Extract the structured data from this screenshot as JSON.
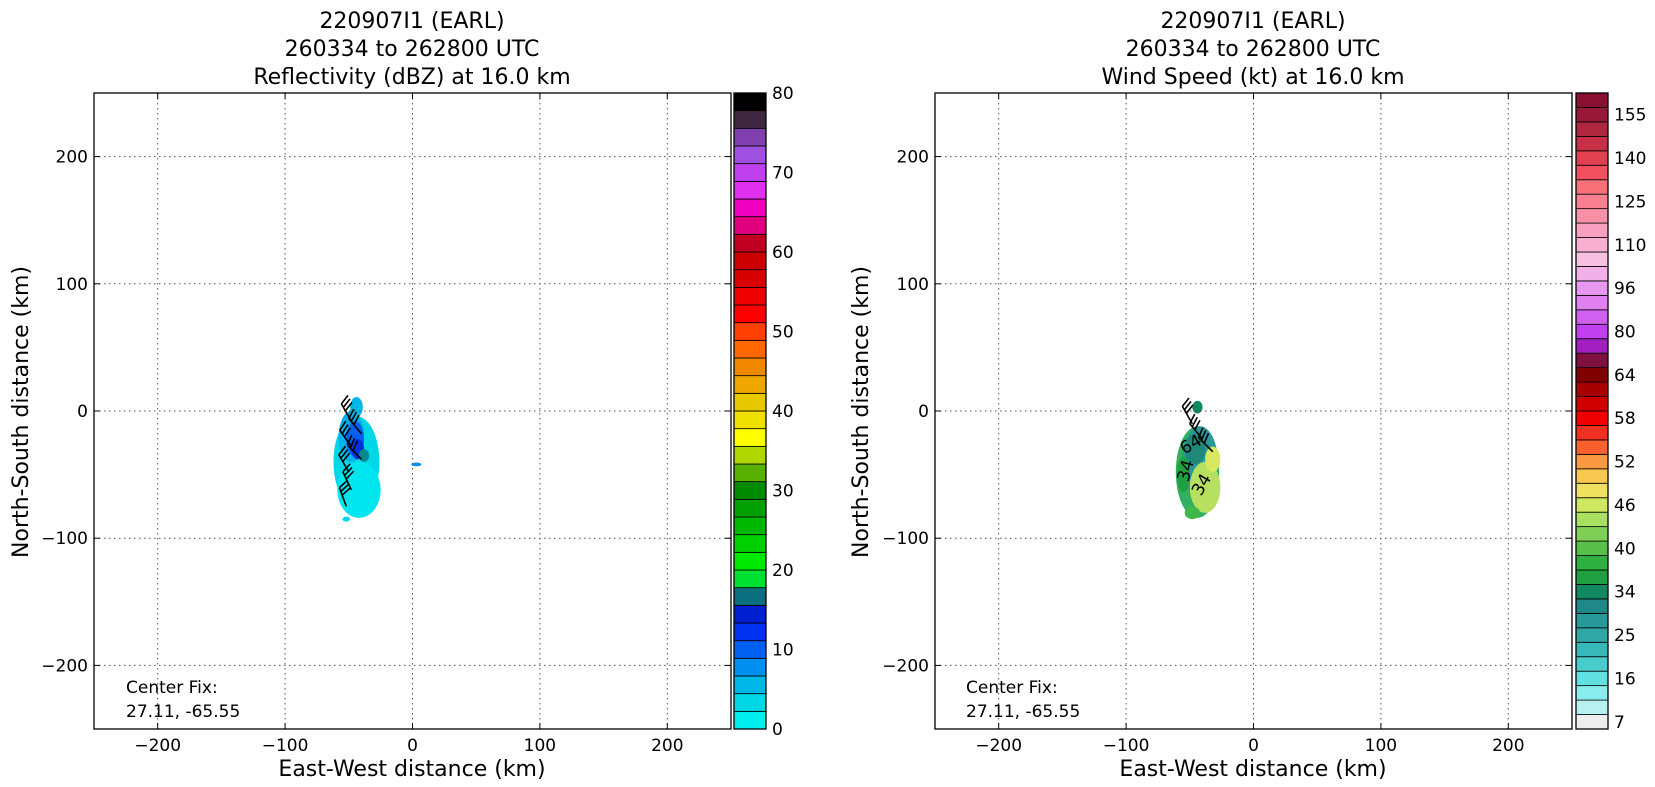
{
  "chart_data": [
    {
      "type": "heatmap",
      "title_lines": [
        "220907I1 (EARL)",
        "260334 to 262800 UTC",
        "Reflectivity (dBZ) at 16.0 km"
      ],
      "xlabel": "East-West distance (km)",
      "ylabel": "North-South distance (km)",
      "xlim": [
        -250,
        250
      ],
      "ylim": [
        -250,
        250
      ],
      "xticks": [
        -200,
        -100,
        0,
        100,
        200
      ],
      "yticks": [
        -200,
        -100,
        0,
        100,
        200
      ],
      "xtick_labels": [
        "−200",
        "−100",
        "0",
        "100",
        "200"
      ],
      "ytick_labels": [
        "−200",
        "−100",
        "0",
        "100",
        "200"
      ],
      "grid": true,
      "annotation": [
        "Center Fix:",
        "27.11, -65.55"
      ],
      "colorbar": {
        "min": 0,
        "max": 80,
        "ticks": [
          0,
          10,
          20,
          30,
          40,
          50,
          60,
          70,
          80
        ],
        "colors": [
          "#00f0f0",
          "#00d8e8",
          "#00b8e8",
          "#0090f0",
          "#0060f0",
          "#0030f0",
          "#0020d0",
          "#0a7080",
          "#00e030",
          "#00e800",
          "#00d000",
          "#00b800",
          "#00a000",
          "#008a00",
          "#58b000",
          "#b0d800",
          "#ffff00",
          "#f0e000",
          "#e8c800",
          "#f0a800",
          "#f08800",
          "#ff6800",
          "#ff4000",
          "#ff0000",
          "#ee0000",
          "#d80000",
          "#cc0000",
          "#c00020",
          "#e00080",
          "#f000c0",
          "#e030f0",
          "#c040f0",
          "#a050e0",
          "#8040b0",
          "#402840",
          "#000000"
        ]
      },
      "blobs": [
        {
          "x": -44,
          "y": -40,
          "rx": 18,
          "ry": 36,
          "color": "#00d8e8"
        },
        {
          "x": -42,
          "y": -62,
          "rx": 17,
          "ry": 22,
          "color": "#00e6ee"
        },
        {
          "x": -48,
          "y": -20,
          "rx": 10,
          "ry": 20,
          "color": "#00b0ec"
        },
        {
          "x": -45,
          "y": -22,
          "rx": 7,
          "ry": 14,
          "color": "#0060f0"
        },
        {
          "x": -43,
          "y": -30,
          "rx": 5,
          "ry": 8,
          "color": "#0030e0"
        },
        {
          "x": -38,
          "y": -35,
          "rx": 4,
          "ry": 5,
          "color": "#0a8a90"
        },
        {
          "x": -44,
          "y": 3,
          "rx": 5,
          "ry": 8,
          "color": "#00b8e8"
        },
        {
          "x": 3,
          "y": -42,
          "rx": 4,
          "ry": 1.5,
          "color": "#0090f0"
        },
        {
          "x": -52,
          "y": -85,
          "rx": 3,
          "ry": 2,
          "color": "#00d8e8"
        }
      ],
      "barbs": [
        {
          "x": -48,
          "y": -8,
          "dir": -30
        },
        {
          "x": -40,
          "y": -18,
          "dir": -40
        },
        {
          "x": -48,
          "y": -28,
          "dir": -35
        },
        {
          "x": -40,
          "y": -38,
          "dir": -45
        },
        {
          "x": -50,
          "y": -48,
          "dir": -30
        },
        {
          "x": -48,
          "y": -62,
          "dir": -25
        },
        {
          "x": -52,
          "y": -75,
          "dir": -20
        }
      ]
    },
    {
      "type": "heatmap",
      "title_lines": [
        "220907I1 (EARL)",
        "260334 to 262800 UTC",
        "Wind Speed (kt) at 16.0 km"
      ],
      "xlabel": "East-West distance (km)",
      "ylabel": "North-South distance (km)",
      "xlim": [
        -250,
        250
      ],
      "ylim": [
        -250,
        250
      ],
      "xticks": [
        -200,
        -100,
        0,
        100,
        200
      ],
      "yticks": [
        -200,
        -100,
        0,
        100,
        200
      ],
      "xtick_labels": [
        "−200",
        "−100",
        "0",
        "100",
        "200"
      ],
      "ytick_labels": [
        "−200",
        "−100",
        "0",
        "100",
        "200"
      ],
      "grid": true,
      "annotation": [
        "Center Fix:",
        "27.11, -65.55"
      ],
      "colorbar": {
        "tick_labels": [
          "7",
          "16",
          "25",
          "34",
          "40",
          "46",
          "52",
          "58",
          "64",
          "80",
          "96",
          "110",
          "125",
          "140",
          "155"
        ],
        "tick_index": [
          0,
          3,
          6,
          9,
          12,
          15,
          18,
          21,
          24,
          27,
          30,
          33,
          36,
          39,
          42
        ],
        "colors": [
          "#eeeeee",
          "#b8f0f0",
          "#88ecec",
          "#60e0e0",
          "#48cccc",
          "#38b8b8",
          "#30a8a8",
          "#289898",
          "#208888",
          "#108860",
          "#20a040",
          "#30b040",
          "#58c048",
          "#80d058",
          "#a8e060",
          "#d0e860",
          "#f0e060",
          "#f8c850",
          "#f89840",
          "#f86030",
          "#f03020",
          "#f00000",
          "#d00000",
          "#a80000",
          "#800000",
          "#801040",
          "#a020c0",
          "#c040f0",
          "#d060f0",
          "#e080f0",
          "#e898f0",
          "#f0b0e8",
          "#f8c0e0",
          "#f8b0d0",
          "#f8a0c0",
          "#f890a8",
          "#f88090",
          "#f87078",
          "#f05060",
          "#e04050",
          "#c83048",
          "#b02840",
          "#981838",
          "#881030"
        ]
      },
      "blobs": [
        {
          "x": -44,
          "y": -48,
          "rx": 17,
          "ry": 36,
          "color": "#30b060"
        },
        {
          "x": -42,
          "y": -40,
          "rx": 14,
          "ry": 28,
          "color": "#289898"
        },
        {
          "x": -38,
          "y": -60,
          "rx": 12,
          "ry": 20,
          "color": "#b8e060"
        },
        {
          "x": -46,
          "y": -30,
          "rx": 8,
          "ry": 12,
          "color": "#208878"
        },
        {
          "x": -32,
          "y": -38,
          "rx": 6,
          "ry": 10,
          "color": "#d8e860"
        },
        {
          "x": -55,
          "y": -50,
          "rx": 5,
          "ry": 14,
          "color": "#20a040"
        },
        {
          "x": -44,
          "y": 3,
          "rx": 4,
          "ry": 5,
          "color": "#108860"
        },
        {
          "x": -48,
          "y": -80,
          "rx": 6,
          "ry": 5,
          "color": "#40b848"
        }
      ],
      "contour_labels": [
        {
          "text": "34",
          "x": -49,
          "y": -48,
          "rot": -75
        },
        {
          "text": "34",
          "x": -37,
          "y": -60,
          "rot": -60
        },
        {
          "text": "64",
          "x": -47,
          "y": -30,
          "rot": -30
        }
      ],
      "barbs": [
        {
          "x": -48,
          "y": -10,
          "dir": -30
        },
        {
          "x": -40,
          "y": -22,
          "dir": -40
        },
        {
          "x": -32,
          "y": -32,
          "dir": -45
        }
      ]
    }
  ]
}
